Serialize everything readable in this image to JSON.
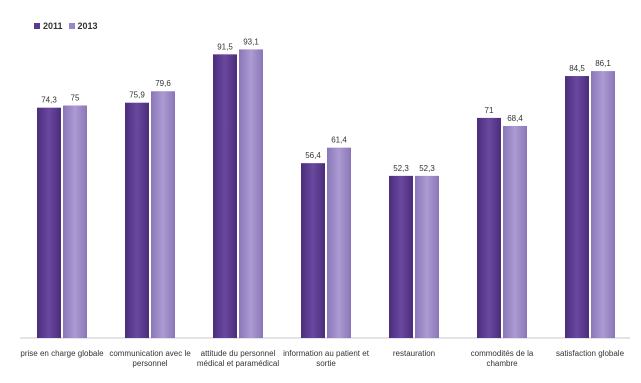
{
  "chart_data": {
    "type": "bar",
    "categories": [
      "prise en charge globale",
      "communication avec le personnel",
      "attitude du personnel médical et paramédical",
      "information au patient et sortie",
      "restauration",
      "commodités de la chambre",
      "satisfaction globale"
    ],
    "series": [
      {
        "name": "2011",
        "values": [
          74.3,
          75.9,
          91.5,
          56.4,
          52.3,
          71,
          84.5
        ],
        "labels": [
          "74,3",
          "75,9",
          "91,5",
          "56,4",
          "52,3",
          "71",
          "84,5"
        ]
      },
      {
        "name": "2013",
        "values": [
          75,
          79.6,
          93.1,
          61.4,
          52.3,
          68.4,
          86.1
        ],
        "labels": [
          "75",
          "79,6",
          "93,1",
          "61,4",
          "52,3",
          "68,4",
          "86,1"
        ]
      }
    ],
    "ylim": [
      0,
      100
    ],
    "legend_position": "top-left",
    "grid": false,
    "colors": {
      "2011": "#5b3a8f",
      "2013": "#9a88c4"
    }
  }
}
